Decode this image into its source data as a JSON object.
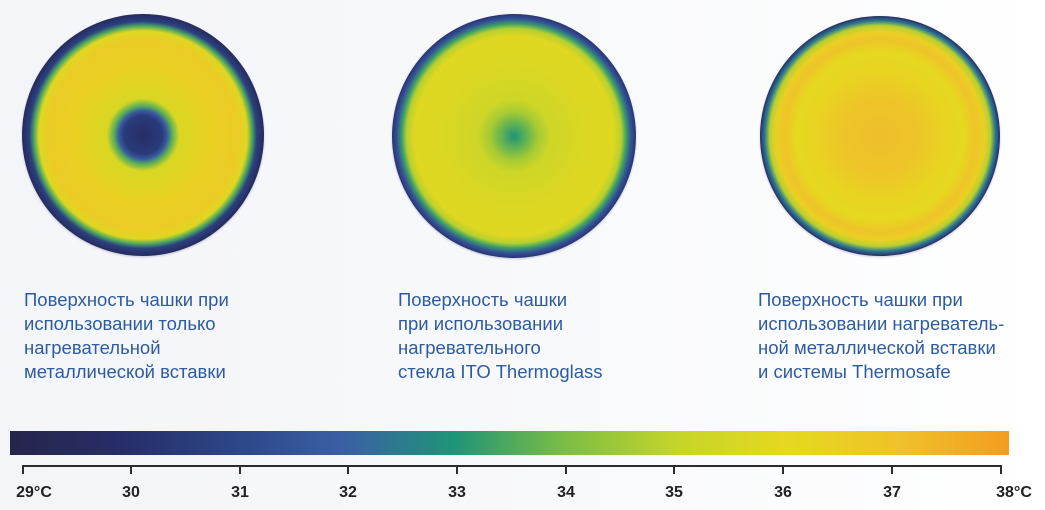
{
  "captions": [
    "Поверхность чашки при\nиспользовании только\nнагревательной\nметаллической вставки",
    "Поверхность чашки\nпри использовании\nнагревательного\nстекла ITO Thermoglass",
    "Поверхность чашки при\nиспользовании нагреватель-\nной металлической вставки\nи системы Thermosafe"
  ],
  "scale": {
    "min": 29,
    "max": 38,
    "tick_labels": [
      "29°C",
      "30",
      "31",
      "32",
      "33",
      "34",
      "35",
      "36",
      "37",
      "38°C"
    ],
    "colors": [
      "#25254a",
      "#272d68",
      "#2c4586",
      "#3b5fa5",
      "#1f9478",
      "#7cbd44",
      "#c4d52a",
      "#e6d81f",
      "#efc22a",
      "#f39c1f"
    ]
  },
  "chart_data": {
    "type": "heatmap",
    "colorbar": {
      "min": 29,
      "max": 38,
      "unit": "°C",
      "tick_labels": [
        "29°C",
        "30",
        "31",
        "32",
        "33",
        "34",
        "35",
        "36",
        "37",
        "38°C"
      ]
    },
    "dishes": [
      {
        "caption_index": 0,
        "radial_profile_celsius": [
          {
            "r": 0.0,
            "t": 30.0
          },
          {
            "r": 0.16,
            "t": 30.6
          },
          {
            "r": 0.2,
            "t": 31.8
          },
          {
            "r": 0.24,
            "t": 33.6
          },
          {
            "r": 0.3,
            "t": 35.6
          },
          {
            "r": 0.55,
            "t": 36.3
          },
          {
            "r": 0.78,
            "t": 36.6
          },
          {
            "r": 0.86,
            "t": 35.8
          },
          {
            "r": 0.9,
            "t": 33.5
          },
          {
            "r": 0.94,
            "t": 30.8
          },
          {
            "r": 1.0,
            "t": 29.6
          }
        ]
      },
      {
        "caption_index": 1,
        "radial_profile_celsius": [
          {
            "r": 0.0,
            "t": 33.0
          },
          {
            "r": 0.1,
            "t": 33.7
          },
          {
            "r": 0.2,
            "t": 34.6
          },
          {
            "r": 0.3,
            "t": 35.3
          },
          {
            "r": 0.6,
            "t": 35.7
          },
          {
            "r": 0.82,
            "t": 35.8
          },
          {
            "r": 0.88,
            "t": 34.8
          },
          {
            "r": 0.92,
            "t": 33.3
          },
          {
            "r": 0.96,
            "t": 31.5
          },
          {
            "r": 1.0,
            "t": 30.3
          }
        ]
      },
      {
        "caption_index": 2,
        "radial_profile_celsius": [
          {
            "r": 0.0,
            "t": 37.1
          },
          {
            "r": 0.3,
            "t": 36.9
          },
          {
            "r": 0.55,
            "t": 36.2
          },
          {
            "r": 0.7,
            "t": 36.0
          },
          {
            "r": 0.8,
            "t": 36.9
          },
          {
            "r": 0.87,
            "t": 36.4
          },
          {
            "r": 0.92,
            "t": 34.8
          },
          {
            "r": 0.96,
            "t": 32.5
          },
          {
            "r": 1.0,
            "t": 30.0
          }
        ]
      }
    ]
  }
}
